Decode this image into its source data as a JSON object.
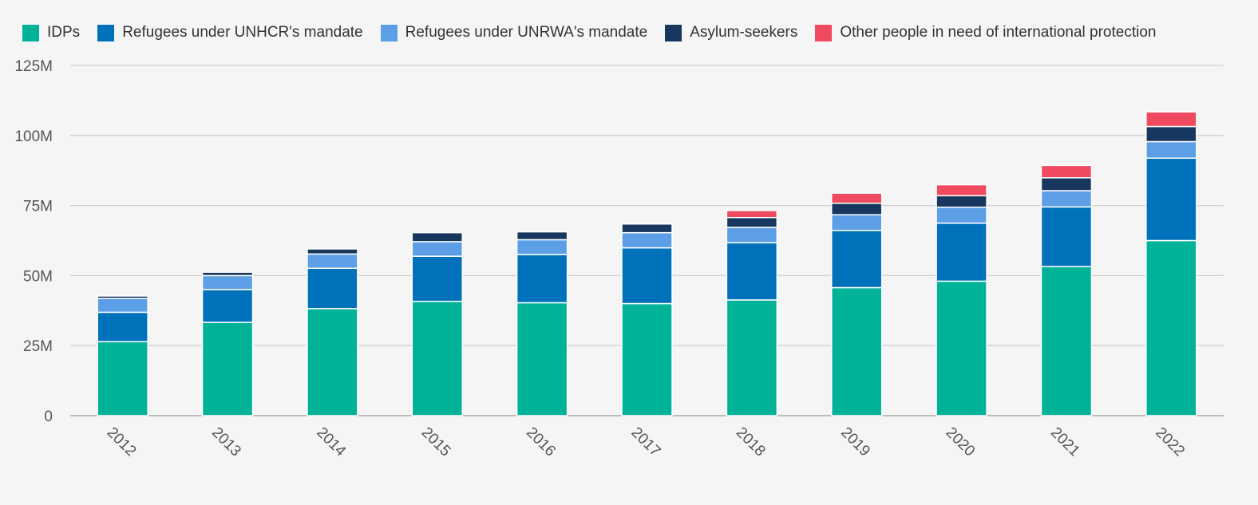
{
  "chart_data": {
    "type": "bar",
    "stacked": true,
    "title": "",
    "xlabel": "",
    "ylabel": "",
    "categories": [
      "2012",
      "2013",
      "2014",
      "2015",
      "2016",
      "2017",
      "2018",
      "2019",
      "2020",
      "2021",
      "2022"
    ],
    "series": [
      {
        "name": "IDPs",
        "color": "#00b398",
        "values": [
          26.4,
          33.3,
          38.2,
          40.8,
          40.3,
          40.0,
          41.3,
          45.7,
          48.0,
          53.2,
          62.5
        ]
      },
      {
        "name": "Refugees under UNHCR's mandate",
        "color": "#0072bc",
        "values": [
          10.5,
          11.7,
          14.4,
          16.1,
          17.2,
          19.9,
          20.4,
          20.4,
          20.7,
          21.3,
          29.4
        ]
      },
      {
        "name": "Refugees under UNRWA's mandate",
        "color": "#5c9fe6",
        "values": [
          4.9,
          5.0,
          5.1,
          5.2,
          5.3,
          5.4,
          5.5,
          5.6,
          5.7,
          5.8,
          5.9
        ]
      },
      {
        "name": "Asylum-seekers",
        "color": "#18375f",
        "values": [
          0.9,
          1.2,
          1.8,
          3.2,
          2.8,
          3.1,
          3.5,
          4.1,
          4.1,
          4.6,
          5.4
        ]
      },
      {
        "name": "Other people in need of international protection",
        "color": "#ef4a60",
        "values": [
          0,
          0,
          0,
          0,
          0,
          0,
          2.5,
          3.6,
          3.9,
          4.4,
          5.2
        ]
      }
    ],
    "ylim": [
      0,
      125
    ],
    "yticks": [
      0,
      25,
      50,
      75,
      100,
      125
    ],
    "ytick_labels": [
      "0",
      "25M",
      "50M",
      "75M",
      "100M",
      "125M"
    ],
    "grid": true,
    "legend_position": "top-left"
  }
}
